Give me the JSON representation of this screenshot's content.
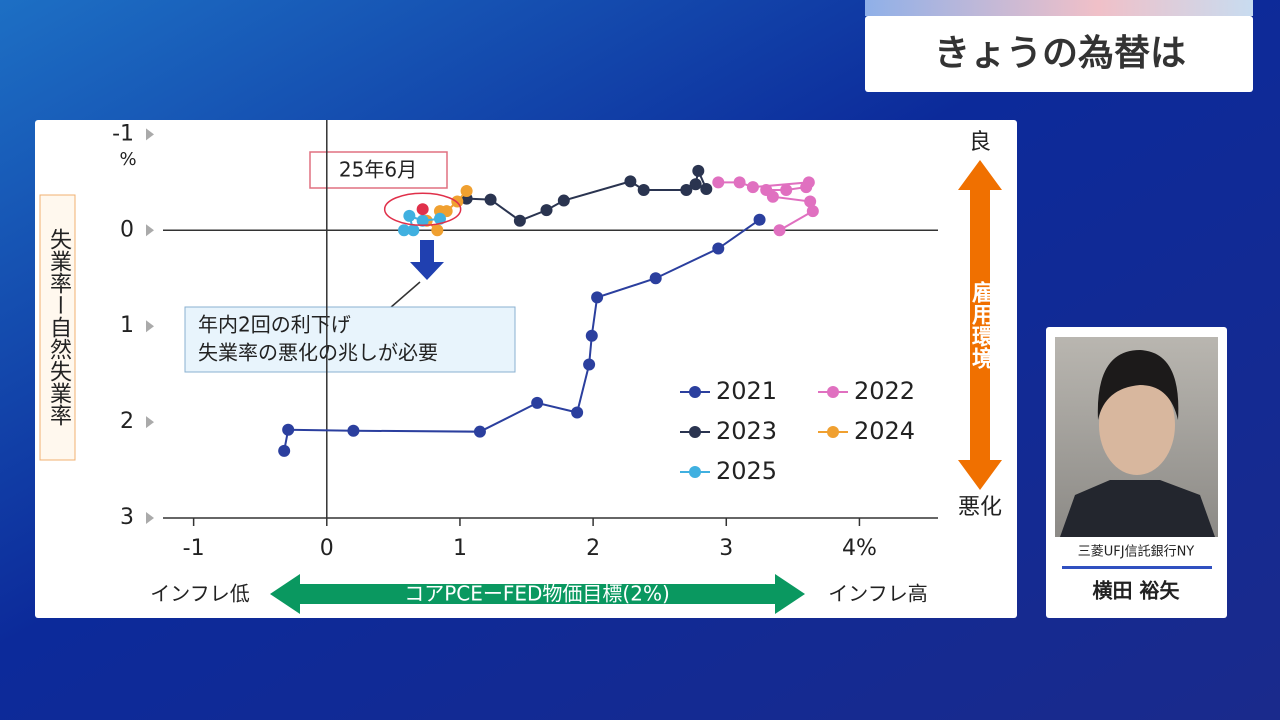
{
  "header": {
    "title": "きょうの為替は"
  },
  "chart_data": {
    "type": "line",
    "y_label": "失業率ー自然失業率",
    "y_unit": "%",
    "x_label": "コアPCEーFED物価目標(2%)",
    "x_left_label": "インフレ低",
    "x_right_label": "インフレ高",
    "right_top_label": "良",
    "right_bottom_label": "悪化",
    "right_label": "雇用環境",
    "annotation": {
      "label": "25年6月",
      "x": 0.72,
      "y": -0.22,
      "color": "#e0304a"
    },
    "callout": [
      "年内2回の利下げ",
      "失業率の悪化の兆しが必要"
    ],
    "xlim": [
      -1.23,
      4.59
    ],
    "ylim": [
      -1.15,
      3
    ],
    "y_reversed": true,
    "xticks": [
      -1,
      0,
      1,
      2,
      3,
      {
        "value": 4,
        "label": "4%"
      }
    ],
    "yticks": [
      -1,
      0,
      1,
      2,
      3
    ],
    "series": [
      {
        "name": "2021",
        "color": "#2b3f9e",
        "x": [
          -0.32,
          -0.29,
          0.2,
          1.15,
          1.58,
          1.88,
          1.97,
          1.99,
          2.03,
          2.47,
          2.94,
          3.25
        ],
        "y": [
          2.3,
          2.08,
          2.09,
          2.1,
          1.8,
          1.9,
          1.4,
          1.1,
          0.7,
          0.5,
          0.19,
          -0.11
        ]
      },
      {
        "name": "2022",
        "color": "#e070c0",
        "x": [
          3.4,
          3.65,
          3.63,
          3.35,
          3.3,
          3.45,
          3.6,
          3.62,
          3.2,
          3.1,
          2.94
        ],
        "y": [
          0.0,
          -0.2,
          -0.3,
          -0.35,
          -0.42,
          -0.42,
          -0.45,
          -0.5,
          -0.45,
          -0.5,
          -0.5
        ]
      },
      {
        "name": "2023",
        "color": "#2a3450",
        "x": [
          2.85,
          2.79,
          2.77,
          2.7,
          2.38,
          2.28,
          1.78,
          1.65,
          1.45,
          1.23,
          1.05
        ],
        "y": [
          -0.43,
          -0.62,
          -0.48,
          -0.42,
          -0.42,
          -0.51,
          -0.31,
          -0.21,
          -0.1,
          -0.32,
          -0.33
        ]
      },
      {
        "name": "2024",
        "color": "#f0a030",
        "x": [
          1.05,
          0.98,
          0.9,
          0.85,
          0.83,
          0.75
        ],
        "y": [
          -0.41,
          -0.3,
          -0.2,
          -0.2,
          0.0,
          -0.1
        ]
      },
      {
        "name": "2025",
        "color": "#40b0e0",
        "x": [
          0.85,
          0.72,
          0.62,
          0.65,
          0.58
        ],
        "y": [
          -0.12,
          -0.1,
          -0.15,
          0.0,
          0.0
        ]
      }
    ]
  },
  "person": {
    "company": "三菱UFJ信託銀行NY",
    "name": "横田 裕矢"
  }
}
